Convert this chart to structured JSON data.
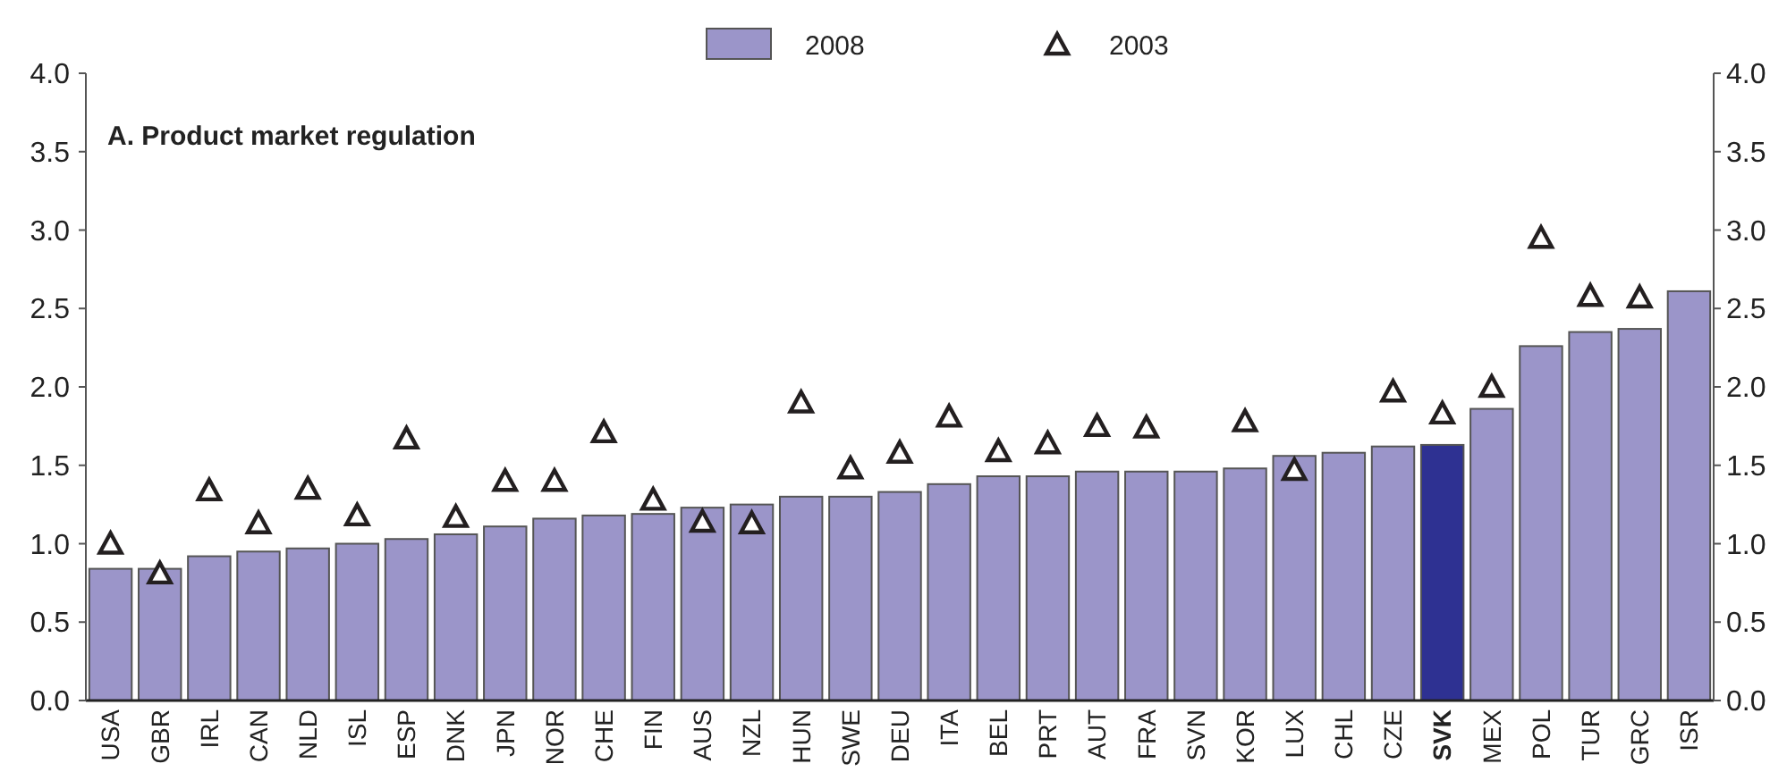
{
  "chart_data": {
    "type": "bar",
    "title": "A. Product market regulation",
    "categories": [
      "USA",
      "GBR",
      "IRL",
      "CAN",
      "NLD",
      "ISL",
      "ESP",
      "DNK",
      "JPN",
      "NOR",
      "CHE",
      "FIN",
      "AUS",
      "NZL",
      "HUN",
      "SWE",
      "DEU",
      "ITA",
      "BEL",
      "PRT",
      "AUT",
      "FRA",
      "SVN",
      "KOR",
      "LUX",
      "CHL",
      "CZE",
      "SVK",
      "MEX",
      "POL",
      "TUR",
      "GRC",
      "ISR"
    ],
    "series": [
      {
        "name": "2008",
        "color": "#9b95c9",
        "colors": [
          "#9b95c9",
          "#9b95c9",
          "#9b95c9",
          "#9b95c9",
          "#9b95c9",
          "#9b95c9",
          "#9b95c9",
          "#9b95c9",
          "#9b95c9",
          "#9b95c9",
          "#9b95c9",
          "#9b95c9",
          "#9b95c9",
          "#9b95c9",
          "#9b95c9",
          "#9b95c9",
          "#9b95c9",
          "#9b95c9",
          "#9b95c9",
          "#9b95c9",
          "#9b95c9",
          "#9b95c9",
          "#9b95c9",
          "#9b95c9",
          "#9b95c9",
          "#9b95c9",
          "#9b95c9",
          "#2e3192",
          "#9b95c9",
          "#9b95c9",
          "#9b95c9",
          "#9b95c9",
          "#9b95c9"
        ],
        "values": [
          0.84,
          0.84,
          0.92,
          0.95,
          0.97,
          1.0,
          1.03,
          1.06,
          1.11,
          1.16,
          1.18,
          1.19,
          1.23,
          1.25,
          1.3,
          1.3,
          1.33,
          1.38,
          1.43,
          1.43,
          1.46,
          1.46,
          1.46,
          1.48,
          1.56,
          1.58,
          1.62,
          1.63,
          1.86,
          2.26,
          2.35,
          2.37,
          2.61
        ]
      },
      {
        "name": "2003",
        "type": "scatter",
        "marker": "triangle",
        "color": "#231f20",
        "values": [
          1.0,
          0.81,
          1.34,
          1.13,
          1.35,
          1.18,
          1.67,
          1.17,
          1.4,
          1.4,
          1.71,
          1.28,
          1.14,
          1.13,
          1.9,
          1.48,
          1.58,
          1.81,
          1.59,
          1.64,
          1.75,
          1.74,
          null,
          1.78,
          1.47,
          null,
          1.97,
          1.83,
          2.0,
          2.95,
          2.58,
          2.57,
          null
        ]
      }
    ],
    "ylim": [
      0,
      4
    ],
    "yticks": [
      {
        "value": 0,
        "label": "0.0"
      },
      {
        "value": 0.5,
        "label": "0.5"
      },
      {
        "value": 1,
        "label": "1.0"
      },
      {
        "value": 1.5,
        "label": "1.5"
      },
      {
        "value": 2,
        "label": "2.0"
      },
      {
        "value": 2.5,
        "label": "2.5"
      },
      {
        "value": 3,
        "label": "3.0"
      },
      {
        "value": 3.5,
        "label": "3.5"
      },
      {
        "value": 4,
        "label": "4.0"
      }
    ],
    "y2lim": [
      0,
      4
    ],
    "y2ticks": [
      {
        "value": 0,
        "label": "0.0"
      },
      {
        "value": 0.5,
        "label": "0.5"
      },
      {
        "value": 1,
        "label": "1.0"
      },
      {
        "value": 1.5,
        "label": "1.5"
      },
      {
        "value": 2,
        "label": "2.0"
      },
      {
        "value": 2.5,
        "label": "2.5"
      },
      {
        "value": 3,
        "label": "3.0"
      },
      {
        "value": 3.5,
        "label": "3.5"
      },
      {
        "value": 4,
        "label": "4.0"
      }
    ],
    "legend": "top"
  }
}
